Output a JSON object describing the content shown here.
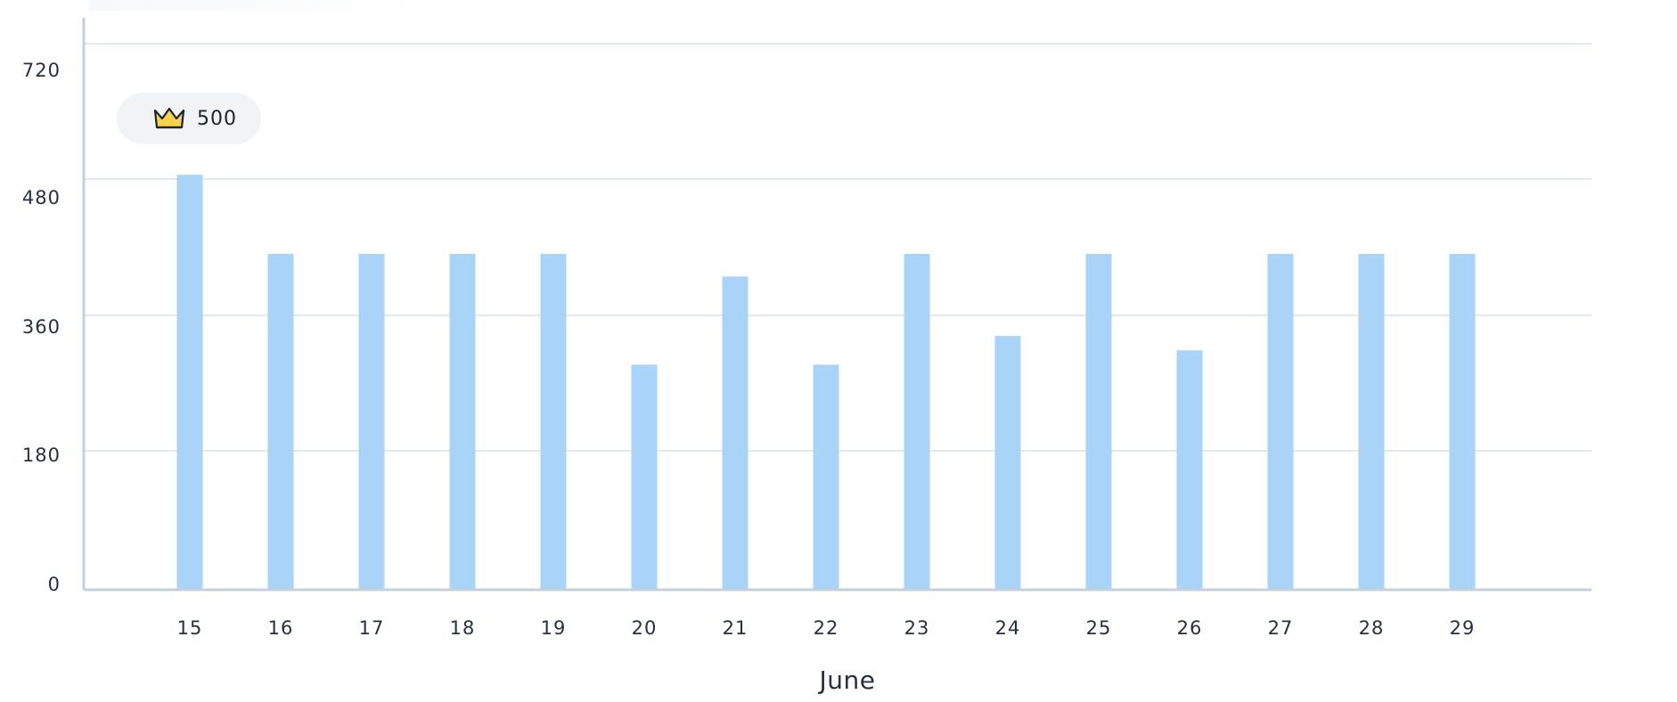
{
  "chart_data": {
    "type": "bar",
    "title": "",
    "xlabel": "June",
    "ylabel": "",
    "categories": [
      "15",
      "16",
      "17",
      "18",
      "19",
      "20",
      "21",
      "22",
      "23",
      "24",
      "25",
      "26",
      "27",
      "28",
      "29"
    ],
    "values": [
      500,
      420,
      420,
      420,
      420,
      300,
      400,
      300,
      420,
      340,
      420,
      320,
      420,
      420,
      420
    ],
    "ylim": [
      0,
      720
    ],
    "y_ticks": [
      "0",
      "180",
      "360",
      "480",
      "720"
    ],
    "grid": true,
    "bar_color": "#aad4f7",
    "highlight": {
      "icon": "crown-icon",
      "value_label": "500",
      "category": "15"
    }
  },
  "colors": {
    "bar": "#aad4f7",
    "grid": "#e3e8ee",
    "axis": "#c5d0dd",
    "text": "#27303f",
    "badge_bg": "#f2f3f5",
    "crown_fill": "#f7d24a",
    "crown_stroke": "#1d2430"
  }
}
